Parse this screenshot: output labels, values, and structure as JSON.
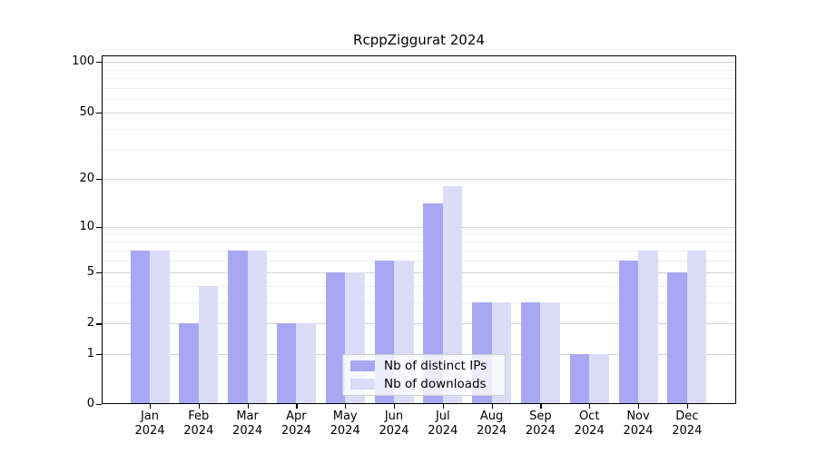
{
  "title": "RcppZiggurat 2024",
  "chart_data": {
    "type": "bar",
    "title": "RcppZiggurat 2024",
    "categories": [
      "Jan",
      "Feb",
      "Mar",
      "Apr",
      "May",
      "Jun",
      "Jul",
      "Aug",
      "Sep",
      "Oct",
      "Nov",
      "Dec"
    ],
    "year": "2024",
    "series": [
      {
        "name": "Nb of distinct IPs",
        "color": "#a7a7f3",
        "values": [
          7,
          2,
          7,
          2,
          5,
          6,
          14,
          3,
          3,
          1,
          6,
          5
        ]
      },
      {
        "name": "Nb of downloads",
        "color": "#dcdcf9",
        "values": [
          7,
          4,
          7,
          2,
          5,
          6,
          18,
          3,
          3,
          1,
          7,
          7
        ]
      }
    ],
    "xlabel": "",
    "ylabel": "",
    "y_axis_ticks": [
      0,
      1,
      2,
      5,
      10,
      20,
      50,
      100
    ],
    "y_axis_minor_ticks": [
      3,
      4,
      6,
      7,
      8,
      9,
      30,
      40,
      60,
      70,
      80,
      90
    ],
    "scale": "log1p",
    "ylim": [
      0,
      110
    ],
    "grid": "horizontal",
    "legend_position": "bottom-center",
    "colors": {
      "major_gridline": "#d4d4d4",
      "minor_gridline": "#eeeeee",
      "axis": "#000000",
      "background": "#ffffff"
    }
  }
}
